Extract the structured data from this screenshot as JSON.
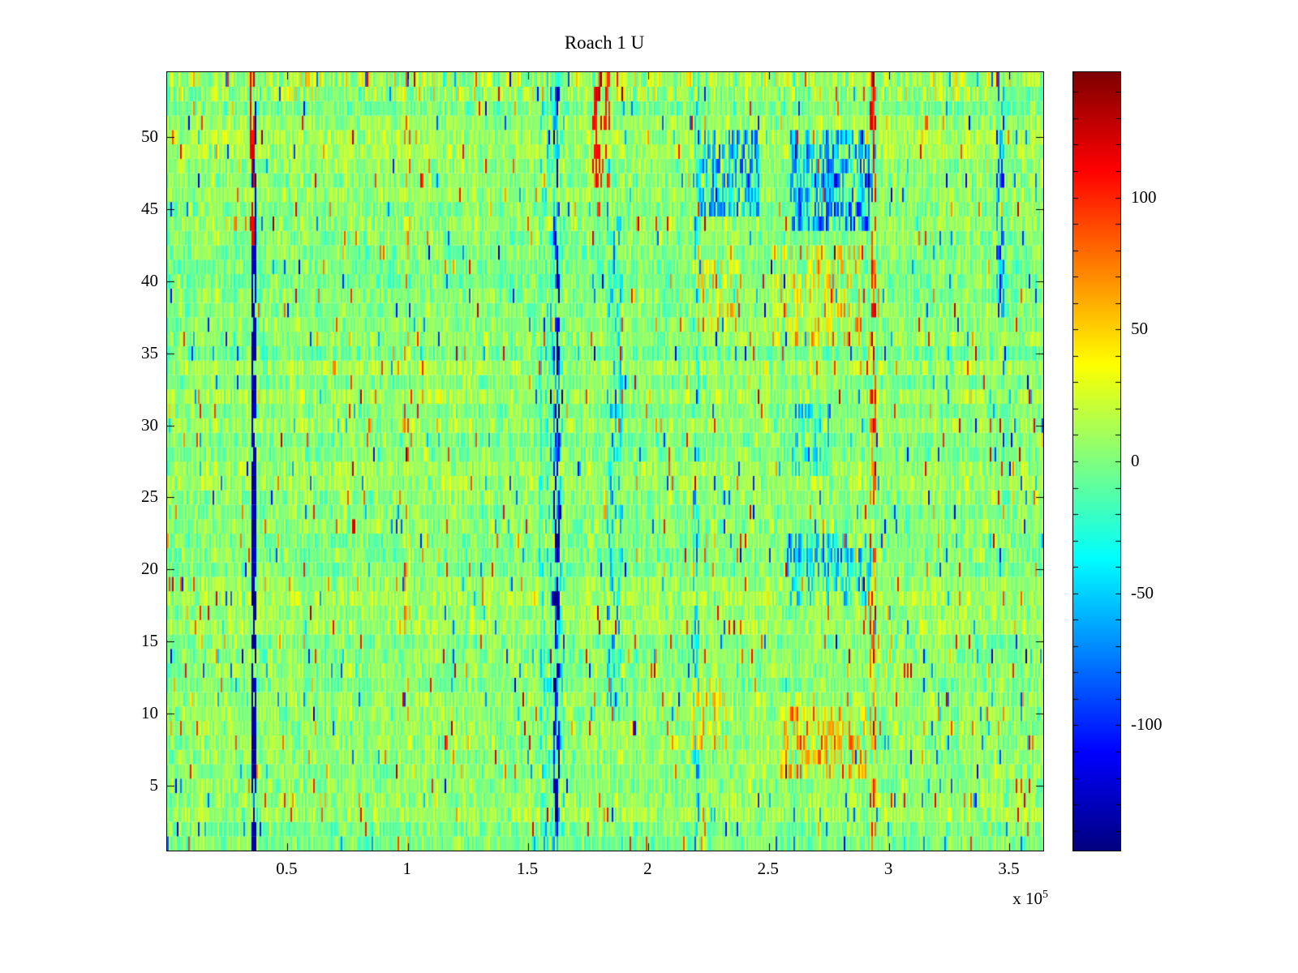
{
  "figure": {
    "background": "#ffffff",
    "x_scale_label": "x 10",
    "x_scale_exponent": "5"
  },
  "chart_data": {
    "type": "heatmap",
    "title": "Roach 1 U",
    "colormap": "jet",
    "xlim": [
      0,
      364000
    ],
    "ylim": [
      0.5,
      54.5
    ],
    "clim": [
      -147.5,
      147.5
    ],
    "x_ticks": [
      50000,
      100000,
      150000,
      200000,
      250000,
      300000,
      350000
    ],
    "x_tick_labels": [
      "0.5",
      "1",
      "1.5",
      "2",
      "2.5",
      "3",
      "3.5"
    ],
    "x_multiplier": "x 10^5",
    "y_ticks": [
      5,
      10,
      15,
      20,
      25,
      30,
      35,
      40,
      45,
      50
    ],
    "y_tick_labels": [
      "5",
      "10",
      "15",
      "20",
      "25",
      "30",
      "35",
      "40",
      "45",
      "50"
    ],
    "grid": {
      "cols": 540,
      "rows": 54
    },
    "colorbar": {
      "ticks": [
        100,
        50,
        0,
        -50,
        -100
      ],
      "labels": [
        "100",
        "50",
        "0",
        "-50",
        "-100"
      ],
      "minor_tick_step": 10
    },
    "noise": {
      "seed": 1337,
      "base_mean": 3,
      "amplitude": 30,
      "row_bias": 16,
      "col_bias": 12,
      "speckle_prob": 0.035,
      "speckle_min": 45,
      "speckle_max": 115,
      "speckle_negative_fraction": 0.45
    },
    "features": [
      {
        "name": "dark-blue-vertical-line",
        "x0": 35200,
        "x1": 36600,
        "y0": 1,
        "y1": 52,
        "value": -135,
        "mode": "set",
        "p": 0.8
      },
      {
        "name": "red-line-top-left",
        "x0": 34600,
        "x1": 36200,
        "y0": 43,
        "y1": 54,
        "value": 115,
        "mode": "set",
        "p": 0.7
      },
      {
        "name": "red-speckle-column-1e5",
        "x0": 98500,
        "x1": 100500,
        "y0": 1,
        "y1": 54,
        "value": 60,
        "mode": "add",
        "p": 0.15
      },
      {
        "name": "blue-band-1p6e5",
        "x0": 155000,
        "x1": 165000,
        "y0": 1,
        "y1": 54,
        "value": -35,
        "mode": "add",
        "p": 0.35
      },
      {
        "name": "dark-blue-line-1p62e5",
        "x0": 161000,
        "x1": 163000,
        "y0": 1,
        "y1": 54,
        "value": -110,
        "mode": "add",
        "p": 0.55
      },
      {
        "name": "red-streak-1p78e5-top",
        "x0": 177000,
        "x1": 180000,
        "y0": 45,
        "y1": 54,
        "value": 110,
        "mode": "set",
        "p": 0.5
      },
      {
        "name": "red-streak-1p83e5-top",
        "x0": 182000,
        "x1": 184000,
        "y0": 47,
        "y1": 54,
        "value": 100,
        "mode": "set",
        "p": 0.45
      },
      {
        "name": "blue-streaks-1p85e5",
        "x0": 183000,
        "x1": 189000,
        "y0": 10,
        "y1": 45,
        "value": -50,
        "mode": "add",
        "p": 0.3
      },
      {
        "name": "mixed-line-2p2e5",
        "x0": 219000,
        "x1": 221000,
        "y0": 1,
        "y1": 54,
        "value": -55,
        "mode": "add",
        "p": 0.3
      },
      {
        "name": "blue-blob-2p3e5-top",
        "x0": 221000,
        "x1": 246000,
        "y0": 45,
        "y1": 50,
        "value": -65,
        "mode": "add",
        "p": 0.55
      },
      {
        "name": "orange-patch-2p3e5",
        "x0": 220000,
        "x1": 237000,
        "y0": 37,
        "y1": 41,
        "value": 42,
        "mode": "add",
        "p": 0.45
      },
      {
        "name": "orange-speckle-2p25e5-low",
        "x0": 218000,
        "x1": 232000,
        "y0": 8,
        "y1": 12,
        "value": 45,
        "mode": "add",
        "p": 0.4
      },
      {
        "name": "blue-blob-2p75e5-top",
        "x0": 259000,
        "x1": 293000,
        "y0": 44,
        "y1": 50,
        "value": -70,
        "mode": "add",
        "p": 0.6
      },
      {
        "name": "orange-band-2p7e5",
        "x0": 252000,
        "x1": 288000,
        "y0": 36,
        "y1": 42,
        "value": 45,
        "mode": "add",
        "p": 0.45
      },
      {
        "name": "blue-band-2p75e5-mid",
        "x0": 258000,
        "x1": 292000,
        "y0": 18,
        "y1": 22,
        "value": -55,
        "mode": "add",
        "p": 0.45
      },
      {
        "name": "blue-patch-2p65e5",
        "x0": 260000,
        "x1": 275000,
        "y0": 27,
        "y1": 31,
        "value": -45,
        "mode": "add",
        "p": 0.35
      },
      {
        "name": "orange-blob-2p7e5-low",
        "x0": 255000,
        "x1": 290000,
        "y0": 6,
        "y1": 10,
        "value": 50,
        "mode": "add",
        "p": 0.55
      },
      {
        "name": "red-line-2p93e5",
        "x0": 292000,
        "x1": 294500,
        "y0": 1,
        "y1": 54,
        "value": 80,
        "mode": "add",
        "p": 0.45
      },
      {
        "name": "red-segment-2p93e5-top",
        "x0": 292000,
        "x1": 294000,
        "y0": 50,
        "y1": 54,
        "value": 120,
        "mode": "set",
        "p": 0.5
      },
      {
        "name": "blue-line-3p46e5-top",
        "x0": 345000,
        "x1": 347500,
        "y0": 38,
        "y1": 54,
        "value": -85,
        "mode": "add",
        "p": 0.5
      },
      {
        "name": "top-rows-warm-speckle",
        "x0": 0,
        "x1": 364000,
        "y0": 53,
        "y1": 54,
        "value": 28,
        "mode": "add",
        "p": 0.35
      }
    ]
  }
}
